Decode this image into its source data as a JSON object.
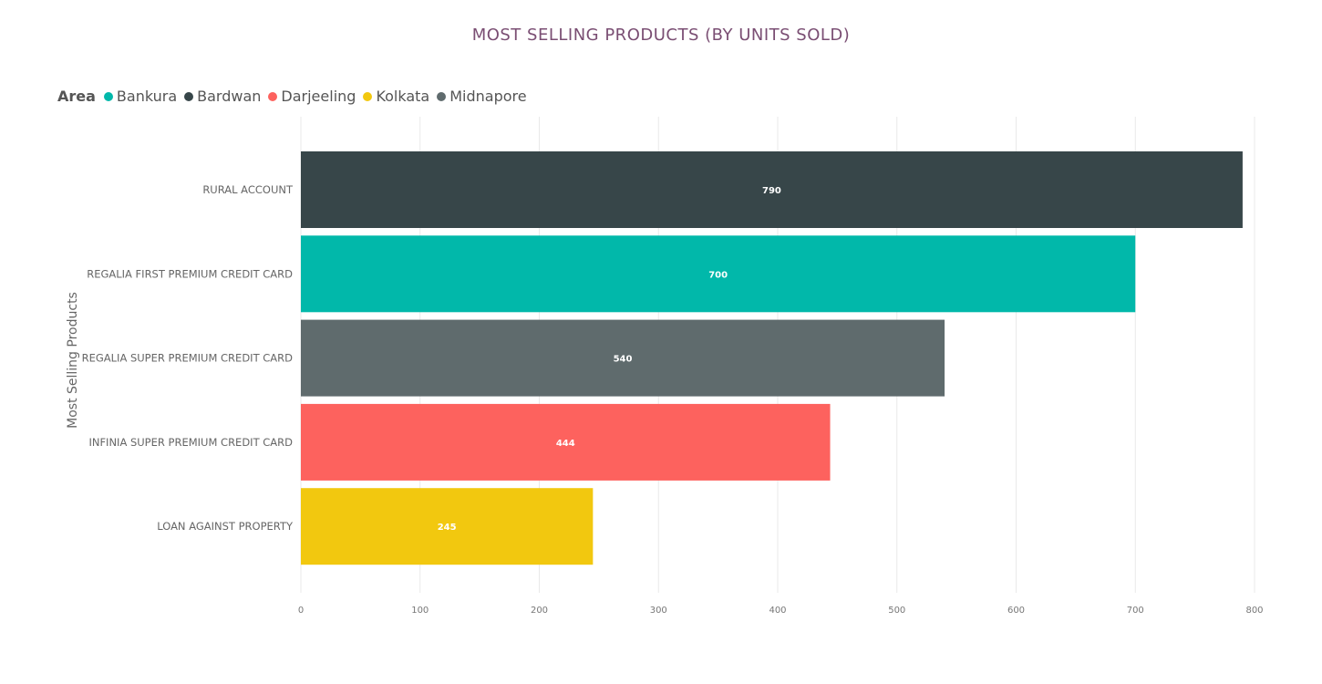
{
  "chart_data": {
    "type": "bar",
    "orientation": "horizontal",
    "title": "MOST SELLING PRODUCTS (BY UNITS SOLD)",
    "ylabel": "Most Selling Products",
    "xlabel": "",
    "legend": {
      "title": "Area",
      "placement": "top-left",
      "entries": [
        {
          "name": "Bankura",
          "color": "#01b8aa"
        },
        {
          "name": "Bardwan",
          "color": "#374649"
        },
        {
          "name": "Darjeeling",
          "color": "#fd625e"
        },
        {
          "name": "Kolkata",
          "color": "#f2c80f"
        },
        {
          "name": "Midnapore",
          "color": "#5f6b6d"
        }
      ]
    },
    "categories": [
      "RURAL ACCOUNT",
      "REGALIA FIRST PREMIUM CREDIT CARD",
      "REGALIA SUPER PREMIUM CREDIT CARD",
      "INFINIA SUPER PREMIUM CREDIT CARD",
      "LOAN AGAINST PROPERTY"
    ],
    "values": [
      790,
      700,
      540,
      444,
      245
    ],
    "bar_areas": [
      "Bardwan",
      "Bankura",
      "Midnapore",
      "Darjeeling",
      "Kolkata"
    ],
    "data_labels": [
      "790",
      "700",
      "540",
      "444",
      "245"
    ],
    "xlim": [
      0,
      800
    ],
    "xticks": [
      0,
      100,
      200,
      300,
      400,
      500,
      600,
      700,
      800
    ],
    "xtick_labels": [
      "0",
      "100",
      "200",
      "300",
      "400",
      "500",
      "600",
      "700",
      "800"
    ],
    "grid": true
  }
}
